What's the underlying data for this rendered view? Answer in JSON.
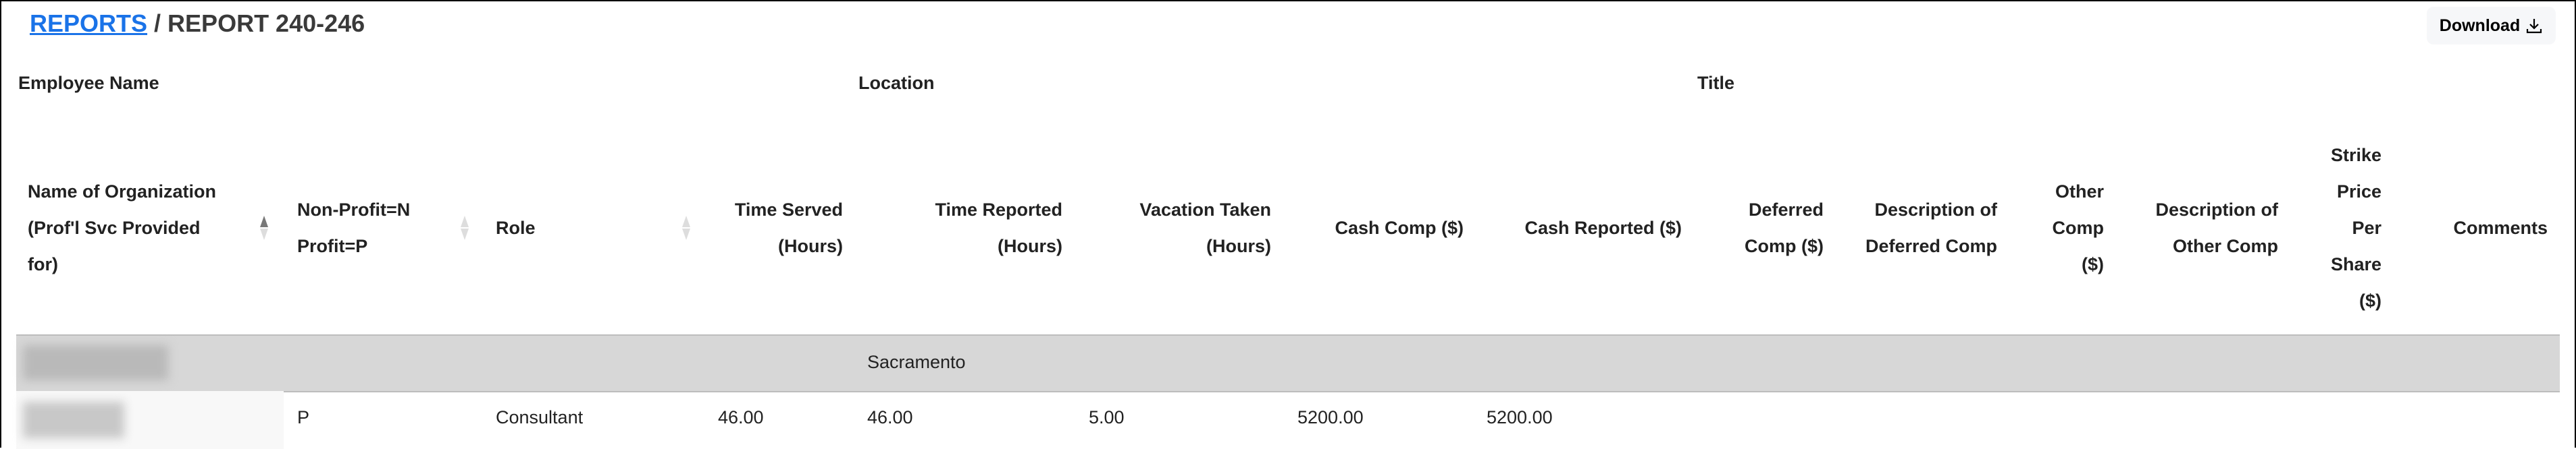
{
  "breadcrumb": {
    "parent": "REPORTS",
    "separator": " / ",
    "current": "REPORT 240-246"
  },
  "toolbar": {
    "download_label": "Download",
    "download_icon": "download-icon"
  },
  "group_headers": [
    "Employee Name",
    "Location",
    "Title"
  ],
  "columns": [
    {
      "lines": [
        "Name of Organization",
        "(Prof'l Svc Provided",
        "for)"
      ],
      "sortable": true,
      "sort": "ascending"
    },
    {
      "lines": [
        "Non-Profit=N",
        "Profit=P"
      ],
      "sortable": true
    },
    {
      "lines": [
        "Role"
      ],
      "sortable": true
    },
    {
      "lines": [
        "Time Served",
        "(Hours)"
      ]
    },
    {
      "lines": [
        "Time Reported",
        "(Hours)"
      ]
    },
    {
      "lines": [
        "Vacation Taken",
        "(Hours)"
      ]
    },
    {
      "lines": [
        "Cash Comp ($)"
      ]
    },
    {
      "lines": [
        "Cash Reported ($)"
      ]
    },
    {
      "lines": [
        "Deferred",
        "Comp ($)"
      ]
    },
    {
      "lines": [
        "Description of",
        "Deferred Comp"
      ]
    },
    {
      "lines": [
        "Other",
        "Comp",
        "($)"
      ]
    },
    {
      "lines": [
        "Description of",
        "Other Comp"
      ]
    },
    {
      "lines": [
        "Strike",
        "Price",
        "Per",
        "Share",
        "($)"
      ]
    },
    {
      "lines": [
        "Comments"
      ]
    }
  ],
  "groups": [
    {
      "location": "Sacramento",
      "rows": [
        {
          "profit": "P",
          "role": "Consultant",
          "time_served": "46.00",
          "time_reported": "46.00",
          "vacation": "5.00",
          "cash_comp": "5200.00",
          "cash_reported": "5200.00"
        }
      ]
    }
  ],
  "colors": {
    "link": "#1a73e8",
    "group_row_bg": "#d7d7d7"
  }
}
